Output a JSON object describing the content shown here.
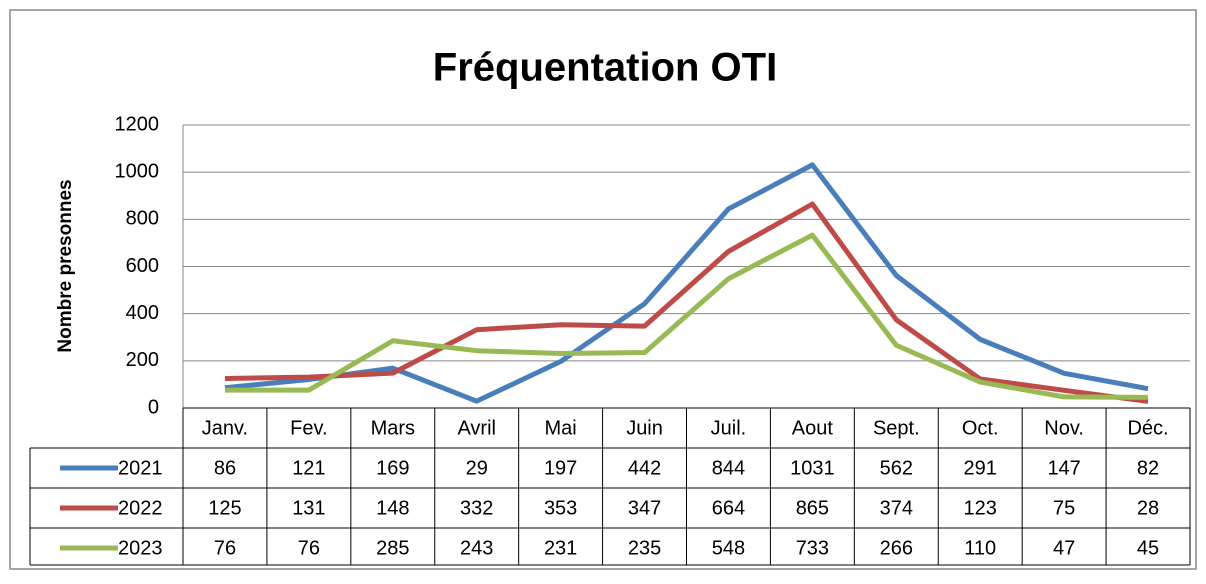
{
  "chart_data": {
    "type": "line",
    "title": "Fréquentation OTI",
    "y_label": "Nombre presonnes",
    "categories": [
      "Janv.",
      "Fev.",
      "Mars",
      "Avril",
      "Mai",
      "Juin",
      "Juil.",
      "Aout",
      "Sept.",
      "Oct.",
      "Nov.",
      "Déc."
    ],
    "series": [
      {
        "name": "2021",
        "color": "#4a7ebb",
        "values": [
          86,
          121,
          169,
          29,
          197,
          442,
          844,
          1031,
          562,
          291,
          147,
          82
        ]
      },
      {
        "name": "2022",
        "color": "#be4b48",
        "values": [
          125,
          131,
          148,
          332,
          353,
          347,
          664,
          865,
          374,
          123,
          75,
          28
        ]
      },
      {
        "name": "2023",
        "color": "#98b954",
        "values": [
          76,
          76,
          285,
          243,
          231,
          235,
          548,
          733,
          266,
          110,
          47,
          45
        ]
      }
    ],
    "ylim": [
      0,
      1200
    ],
    "yticks": [
      0,
      200,
      400,
      600,
      800,
      1000,
      1200
    ],
    "grid": true,
    "data_table": true
  }
}
